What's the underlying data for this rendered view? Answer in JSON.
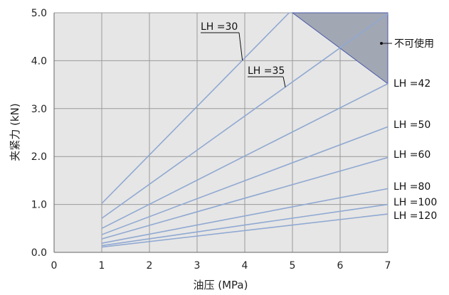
{
  "chart_data": {
    "type": "line",
    "title": "",
    "xlabel": "油压 (MPa)",
    "ylabel": "夹紧力 (kN)",
    "xlim": [
      0,
      7
    ],
    "ylim": [
      0,
      5
    ],
    "x_ticks": [
      "0",
      "1",
      "2",
      "3",
      "4",
      "5",
      "6",
      "7"
    ],
    "y_ticks": [
      "0.0",
      "1.0",
      "2.0",
      "3.0",
      "4.0",
      "5.0"
    ],
    "grid": true,
    "background": "#e6e6e6",
    "series_color": "#8fa8d2",
    "series": [
      {
        "name": "LH =30",
        "x": [
          1,
          4.93
        ],
        "y": [
          1.02,
          5.0
        ]
      },
      {
        "name": "LH =35",
        "x": [
          1,
          7
        ],
        "y": [
          0.71,
          4.98
        ]
      },
      {
        "name": "LH =42",
        "x": [
          1,
          7
        ],
        "y": [
          0.5,
          3.52
        ]
      },
      {
        "name": "LH =50",
        "x": [
          1,
          7
        ],
        "y": [
          0.37,
          2.62
        ]
      },
      {
        "name": "LH =60",
        "x": [
          1,
          7
        ],
        "y": [
          0.28,
          1.98
        ]
      },
      {
        "name": "LH =80",
        "x": [
          1,
          7
        ],
        "y": [
          0.19,
          1.33
        ]
      },
      {
        "name": "LH =100",
        "x": [
          1,
          7
        ],
        "y": [
          0.14,
          1.0
        ]
      },
      {
        "name": "LH =120",
        "x": [
          1,
          7
        ],
        "y": [
          0.11,
          0.8
        ]
      }
    ],
    "unusable_region": {
      "label": "不可使用",
      "color": "#a2a7b4",
      "polygon": [
        [
          5.0,
          5.0
        ],
        [
          7,
          5.0
        ],
        [
          7,
          3.52
        ]
      ]
    }
  }
}
